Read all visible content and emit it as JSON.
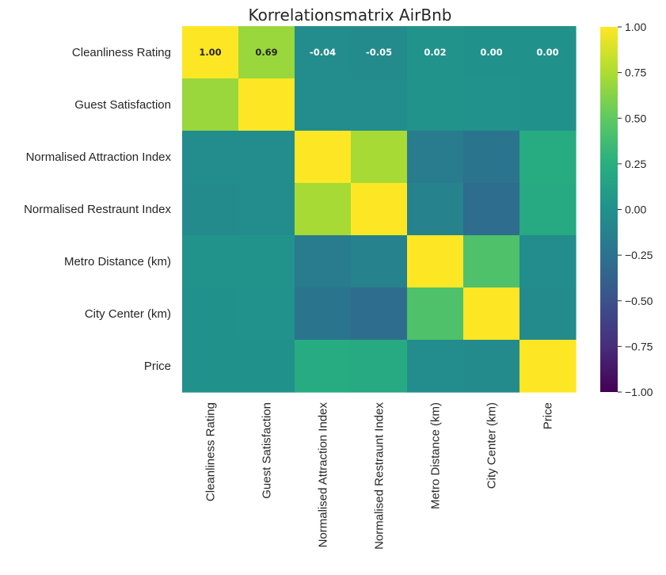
{
  "chart_data": {
    "type": "heatmap",
    "title": "Korrelationsmatrix AirBnb",
    "rows": [
      "Cleanliness Rating",
      "Guest Satisfaction",
      "Normalised Attraction Index",
      "Normalised Restraunt Index",
      "Metro Distance (km)",
      "City Center (km)",
      "Price"
    ],
    "columns": [
      "Cleanliness Rating",
      "Guest Satisfaction",
      "Normalised Attraction Index",
      "Normalised Restraunt Index",
      "Metro Distance (km)",
      "City Center (km)",
      "Price"
    ],
    "values": [
      [
        1.0,
        0.69,
        -0.04,
        -0.05,
        0.02,
        0.0,
        0.0
      ],
      [
        0.69,
        1.0,
        -0.03,
        -0.03,
        0.02,
        0.01,
        0.0
      ],
      [
        -0.04,
        -0.03,
        1.0,
        0.73,
        -0.17,
        -0.23,
        0.23
      ],
      [
        -0.05,
        -0.03,
        0.73,
        1.0,
        -0.12,
        -0.29,
        0.21
      ],
      [
        0.02,
        0.02,
        -0.17,
        -0.12,
        1.0,
        0.43,
        -0.03
      ],
      [
        0.0,
        0.01,
        -0.23,
        -0.29,
        0.43,
        1.0,
        -0.05
      ],
      [
        0.0,
        0.0,
        0.23,
        0.21,
        -0.03,
        -0.05,
        1.0
      ]
    ],
    "annotations": [
      {
        "row": 0,
        "col": 0,
        "text": "1.00"
      },
      {
        "row": 0,
        "col": 1,
        "text": "0.69"
      },
      {
        "row": 0,
        "col": 2,
        "text": "-0.04"
      },
      {
        "row": 0,
        "col": 3,
        "text": "-0.05"
      },
      {
        "row": 0,
        "col": 4,
        "text": "0.02"
      },
      {
        "row": 0,
        "col": 5,
        "text": "0.00"
      },
      {
        "row": 0,
        "col": 6,
        "text": "0.00"
      }
    ],
    "colorscale": "viridis",
    "vmin": -1.0,
    "vmax": 1.0,
    "colorbar_ticks": [
      "1.00",
      "0.75",
      "0.50",
      "0.25",
      "0.00",
      "−0.25",
      "−0.50",
      "−0.75",
      "−1.00"
    ],
    "colorbar_tick_values": [
      1.0,
      0.75,
      0.5,
      0.25,
      0.0,
      -0.25,
      -0.5,
      -0.75,
      -1.0
    ],
    "grid": false
  }
}
